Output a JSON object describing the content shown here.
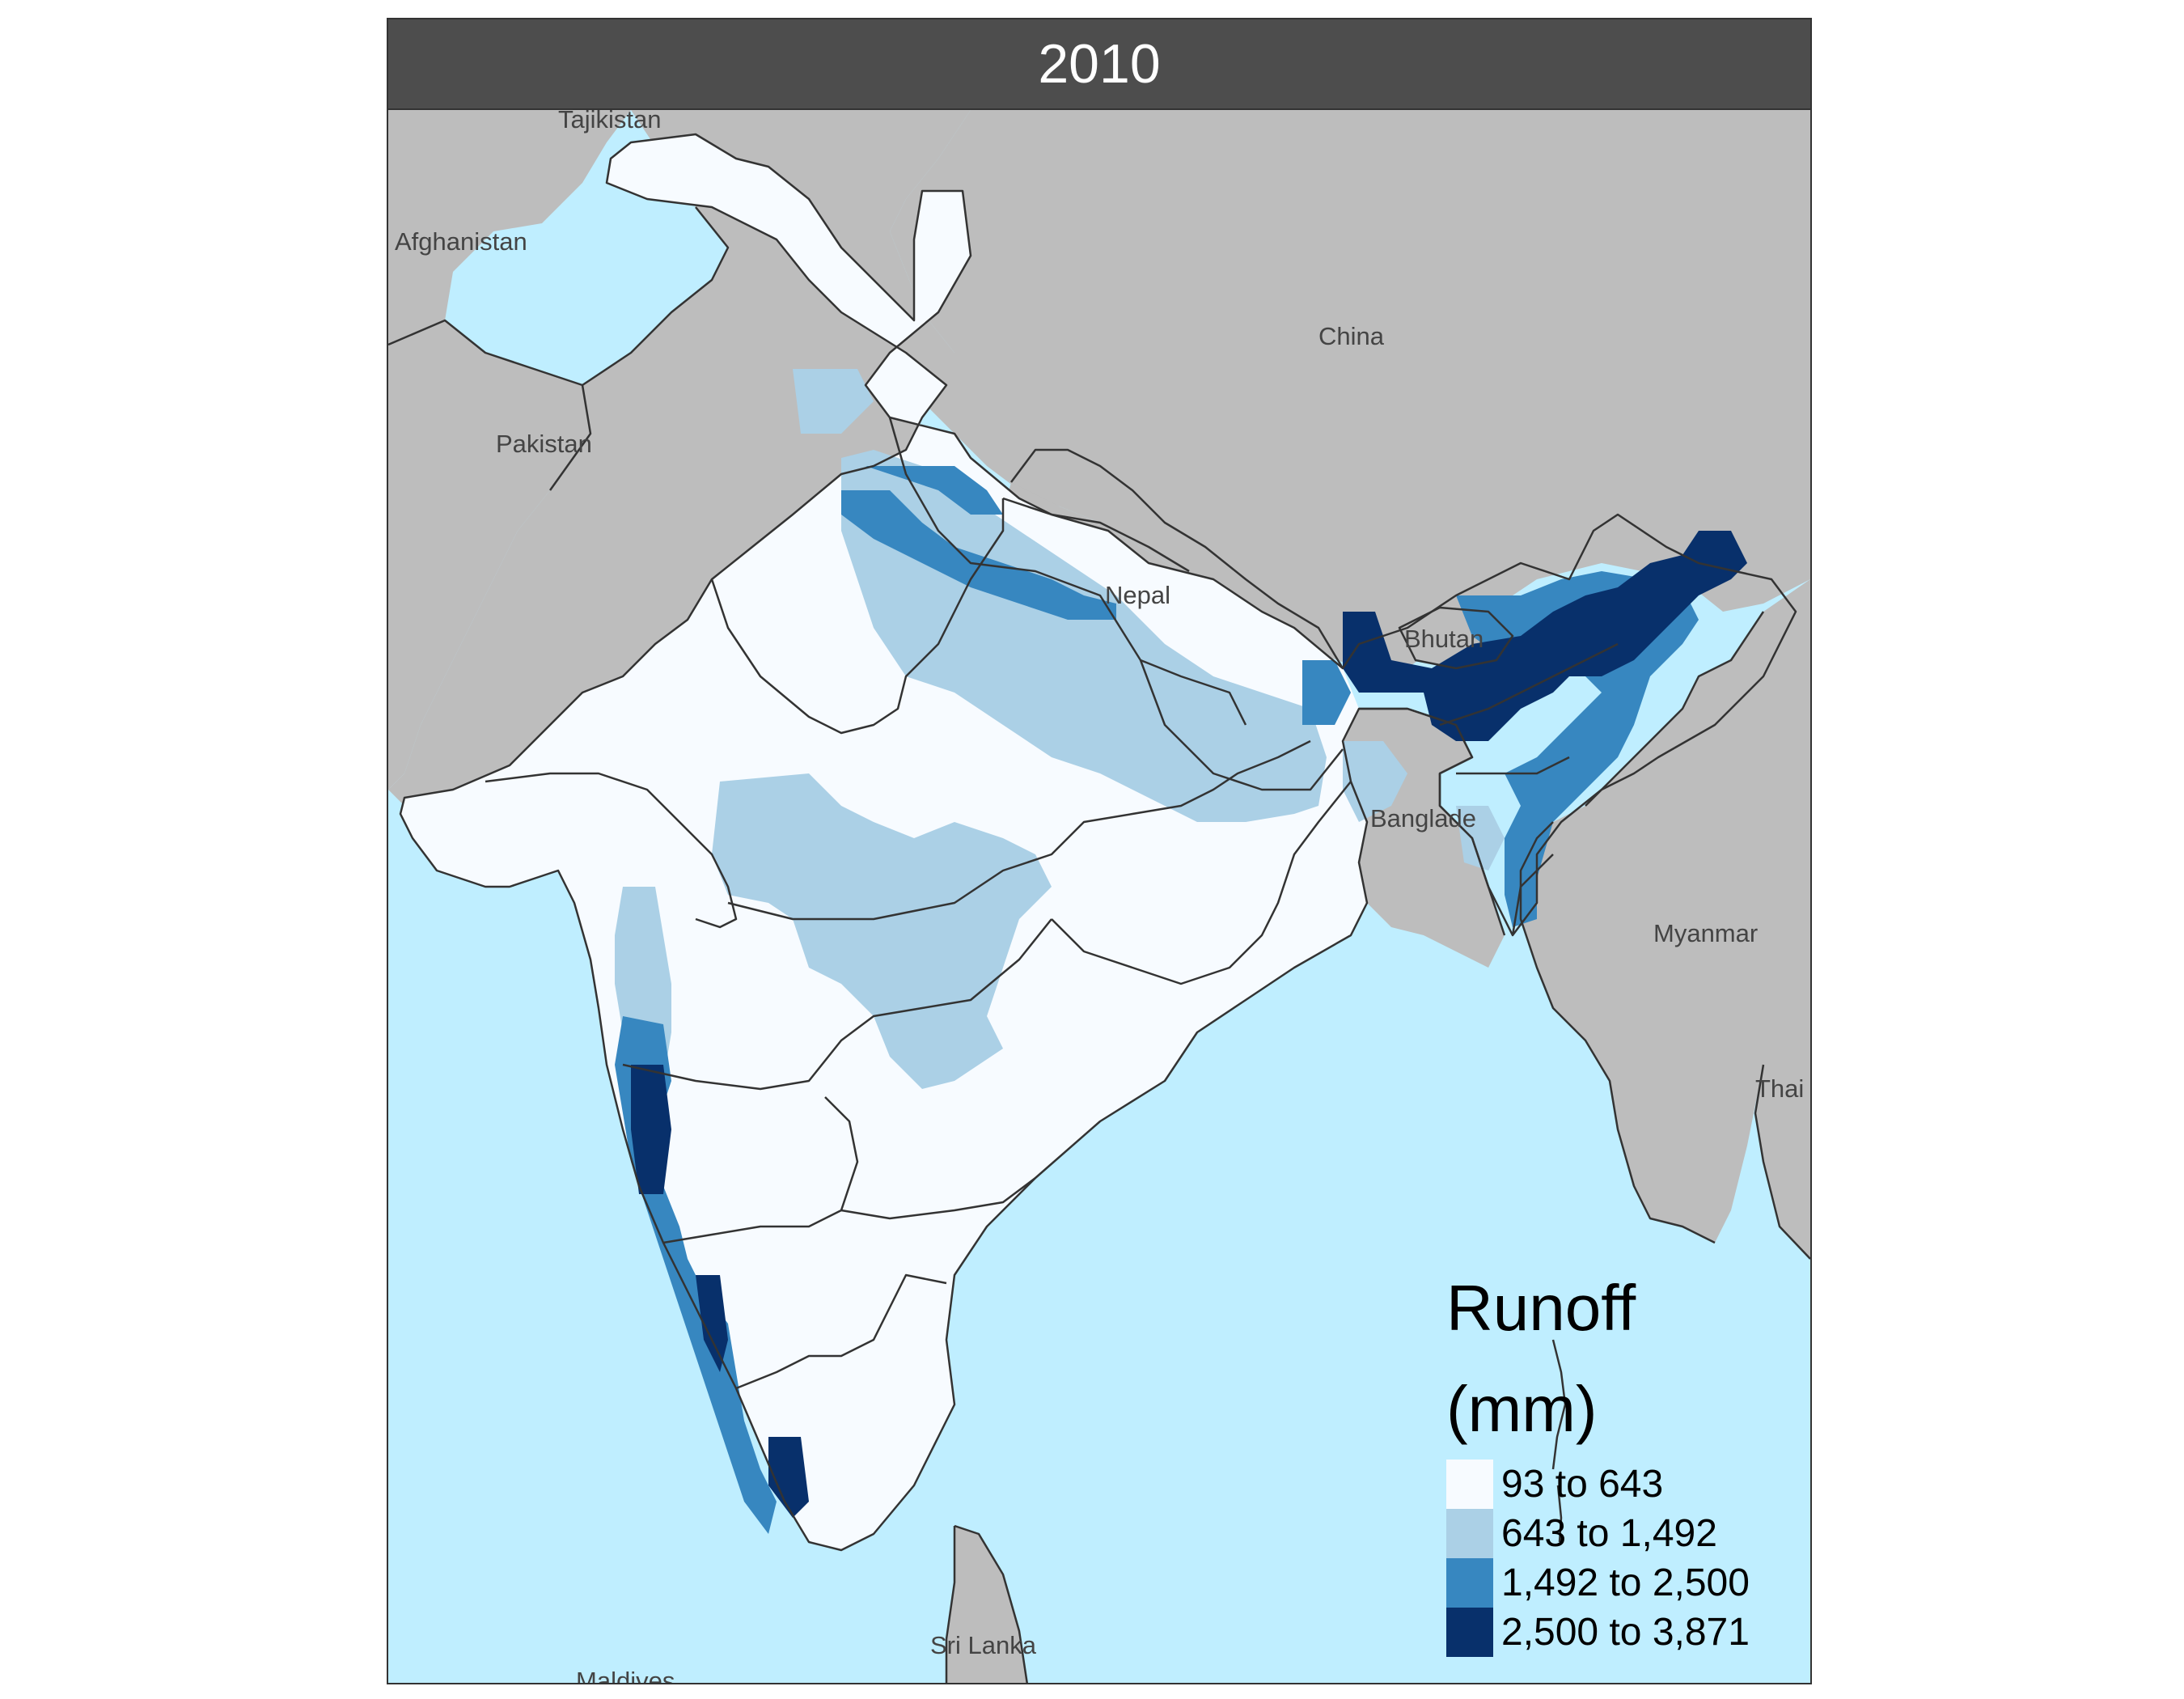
{
  "facet": {
    "title": "2010"
  },
  "colors": {
    "sea": "#bfeeff",
    "land": "#bdbdbd",
    "border": "#333333",
    "strip": "#4d4d4d"
  },
  "labels": {
    "tajikistan": "Tajikistan",
    "afghanistan": "Afghanistan",
    "pakistan": "Pakistan",
    "china": "China",
    "nepal": "Nepal",
    "bhutan": "Bhutan",
    "bangladesh": "Banglade",
    "myanmar": "Myanmar",
    "thai": "Thai",
    "sri_lanka": "Sri Lanka",
    "maldives": "Maldives"
  },
  "legend": {
    "title": "Runoff\n(mm)",
    "classes": [
      {
        "label": "93 to 643",
        "color": "#f7fbff"
      },
      {
        "label": "643 to 1,492",
        "color": "#abd0e6"
      },
      {
        "label": "1,492 to 2,500",
        "color": "#3787c0"
      },
      {
        "label": "2,500 to 3,871",
        "color": "#08306b"
      }
    ]
  }
}
